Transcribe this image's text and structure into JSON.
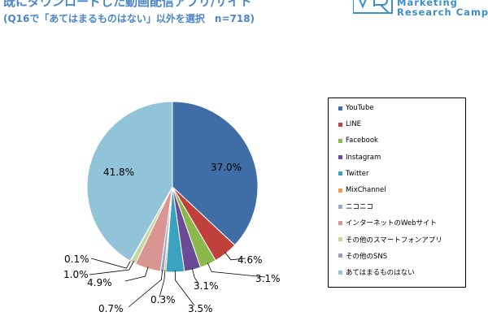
{
  "header": {
    "title": "既にダウンロードした動画配信アプリ/サイト",
    "subtitle": "(Q16で「あてはまるものはない」以外を選択　n=718)"
  },
  "logo": {
    "line1": "Marketing",
    "line2": "Research Camp"
  },
  "chart_data": {
    "type": "pie",
    "title": "既にダウンロードした動画配信アプリ/サイト",
    "subtitle": "(Q16で「あてはまるものはない」以外を選択　n=718)",
    "legend_position": "right",
    "slices": [
      {
        "label": "YouTube",
        "value": 37.0,
        "display": "37.0%",
        "color": "#3f6ea6"
      },
      {
        "label": "LINE",
        "value": 4.6,
        "display": "4.6%",
        "color": "#c0413c"
      },
      {
        "label": "Facebook",
        "value": 3.1,
        "display": "3.1%",
        "color": "#8bb84a"
      },
      {
        "label": "Instagram",
        "value": 3.1,
        "display": "3.1%",
        "color": "#6b4b96"
      },
      {
        "label": "Twitter",
        "value": 3.5,
        "display": "3.5%",
        "color": "#3aa2bf"
      },
      {
        "label": "MixChannel",
        "value": 0.3,
        "display": "0.3%",
        "color": "#f09a44"
      },
      {
        "label": "ニコニコ",
        "value": 0.7,
        "display": "0.7%",
        "color": "#93aad3"
      },
      {
        "label": "インターネットのWebサイト",
        "value": 4.9,
        "display": "4.9%",
        "color": "#d99591"
      },
      {
        "label": "その他のスマートフォンアプリ",
        "value": 1.0,
        "display": "1.0%",
        "color": "#c4d79b"
      },
      {
        "label": "その他のSNS",
        "value": 0.1,
        "display": "0.1%",
        "color": "#a895c2"
      },
      {
        "label": "あてはまるものはない",
        "value": 41.8,
        "display": "41.8%",
        "color": "#92c4d9"
      }
    ]
  }
}
